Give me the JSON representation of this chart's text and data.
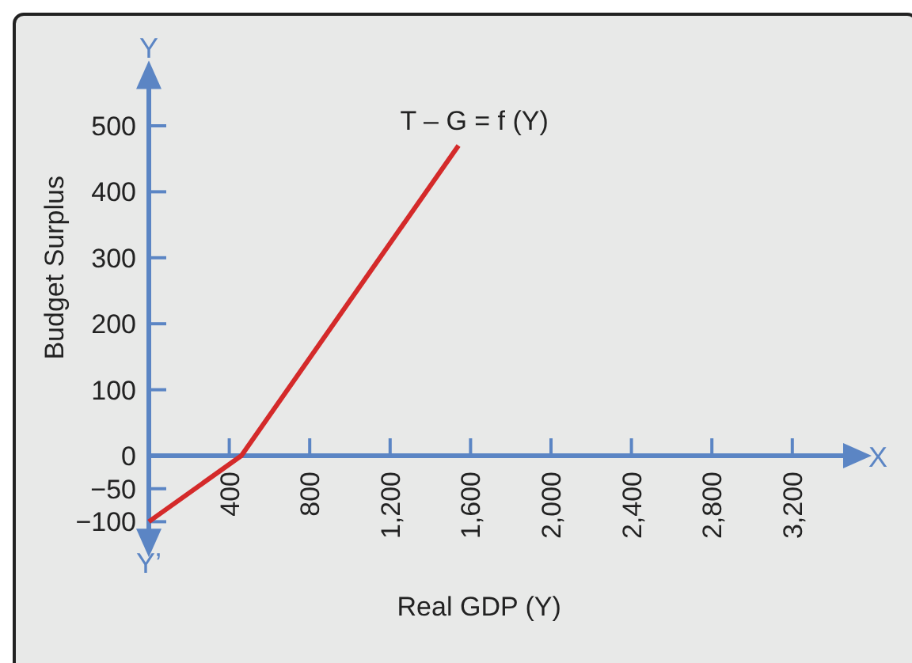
{
  "chart_data": {
    "type": "line",
    "xlabel": "Real GDP (Y)",
    "ylabel": "Budget Surplus",
    "x": [
      0,
      460,
      1540
    ],
    "series": [
      {
        "color": "#d42a2a",
        "values": [
          -100,
          0,
          470
        ]
      }
    ],
    "xlim": [
      0,
      3500
    ],
    "ylim": [
      -125,
      570
    ],
    "xticks": [
      {
        "value": 400,
        "label": "400"
      },
      {
        "value": 800,
        "label": "800"
      },
      {
        "value": 1200,
        "label": "1,200"
      },
      {
        "value": 1600,
        "label": "1,600"
      },
      {
        "value": 2000,
        "label": "2,000"
      },
      {
        "value": 2400,
        "label": "2,400"
      },
      {
        "value": 2800,
        "label": "2,800"
      },
      {
        "value": 3200,
        "label": "3,200"
      }
    ],
    "yticks": [
      {
        "value": -100,
        "label": "−100"
      },
      {
        "value": -50,
        "label": "−50"
      },
      0,
      100,
      200,
      300,
      400,
      500
    ],
    "annotations": [
      {
        "text": "T – G = f (Y)",
        "x": 1540,
        "y": 470
      },
      "Y",
      "Y’",
      "X"
    ],
    "grid": false,
    "marker": "none",
    "line_style": "solid"
  }
}
